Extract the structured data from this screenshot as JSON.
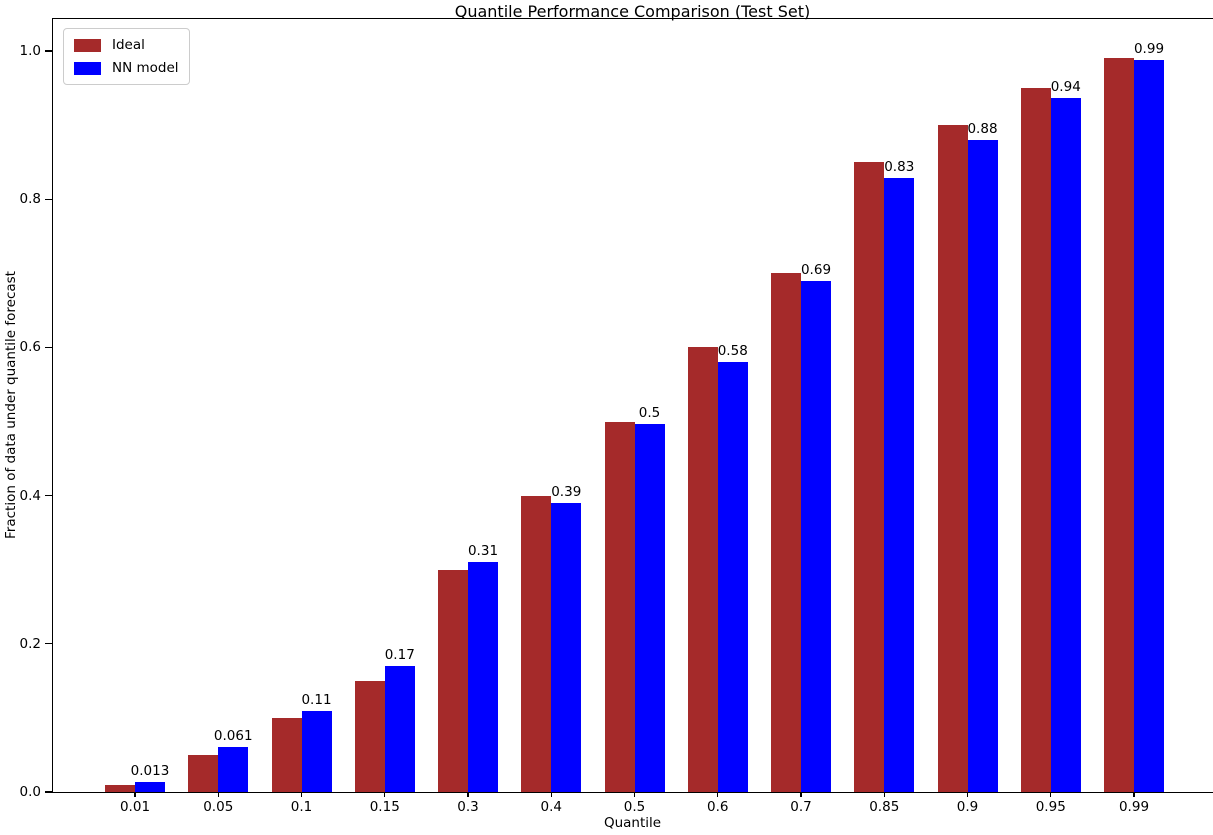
{
  "title": "Quantile Performance Comparison (Test Set)",
  "chart_data": {
    "type": "bar",
    "title": "Quantile Performance Comparison (Test Set)",
    "xlabel": "Quantile",
    "ylabel": "Fraction of data under quantile forecast",
    "categories": [
      "0.01",
      "0.05",
      "0.1",
      "0.15",
      "0.3",
      "0.4",
      "0.5",
      "0.6",
      "0.7",
      "0.85",
      "0.9",
      "0.95",
      "0.99"
    ],
    "series": [
      {
        "name": "Ideal",
        "color": "#A52A2A",
        "values": [
          0.01,
          0.05,
          0.1,
          0.15,
          0.3,
          0.4,
          0.5,
          0.6,
          0.7,
          0.85,
          0.9,
          0.95,
          0.99
        ]
      },
      {
        "name": "NN model",
        "color": "#0000FF",
        "values": [
          0.013,
          0.061,
          0.11,
          0.17,
          0.31,
          0.39,
          0.497,
          0.58,
          0.69,
          0.829,
          0.88,
          0.937,
          0.988
        ],
        "labels": [
          "0.013",
          "0.061",
          "0.11",
          "0.17",
          "0.31",
          "0.39",
          "0.5",
          "0.58",
          "0.69",
          "0.83",
          "0.88",
          "0.94",
          "0.99"
        ]
      }
    ],
    "yticks": [
      "0.0",
      "0.2",
      "0.4",
      "0.6",
      "0.8",
      "1.0"
    ],
    "ylim": [
      0,
      1.046
    ],
    "grid": false,
    "legend_position": "upper left",
    "bar_value_labels_on": "NN model",
    "axis_color": "#000000",
    "background_color": "#ffffff"
  }
}
